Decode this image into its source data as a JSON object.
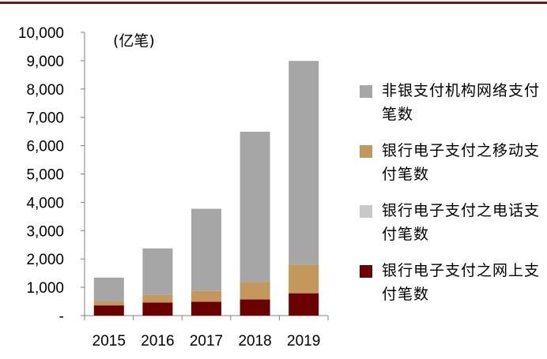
{
  "chart_data": {
    "type": "bar",
    "stacked": true,
    "categories": [
      "2015",
      "2016",
      "2017",
      "2018",
      "2019"
    ],
    "unit": "(亿笔)",
    "ylim": [
      0,
      10000
    ],
    "yticks": [
      0,
      1000,
      2000,
      3000,
      4000,
      5000,
      6000,
      7000,
      8000,
      9000,
      10000
    ],
    "ytick_labels": [
      "-",
      "1,000",
      "2,000",
      "3,000",
      "4,000",
      "5,000",
      "6,000",
      "7,000",
      "8,000",
      "9,000",
      "10,000"
    ],
    "grid": false,
    "legend_position": "right",
    "series": [
      {
        "name": "银行电子支付之网上支付笔数",
        "color": "#6b0000",
        "values": [
          360,
          460,
          490,
          570,
          790
        ]
      },
      {
        "name": "银行电子支付之电话支付笔数",
        "color": "#c8c8c8",
        "values": [
          2,
          2,
          2,
          2,
          2
        ]
      },
      {
        "name": "银行电子支付之移动支付笔数",
        "color": "#c4975c",
        "values": [
          140,
          270,
          380,
          610,
          1010
        ]
      },
      {
        "name": "非银支付机构网络支付笔数",
        "color": "#a6a6a6",
        "values": [
          840,
          1640,
          2900,
          5310,
          7190
        ]
      }
    ]
  }
}
